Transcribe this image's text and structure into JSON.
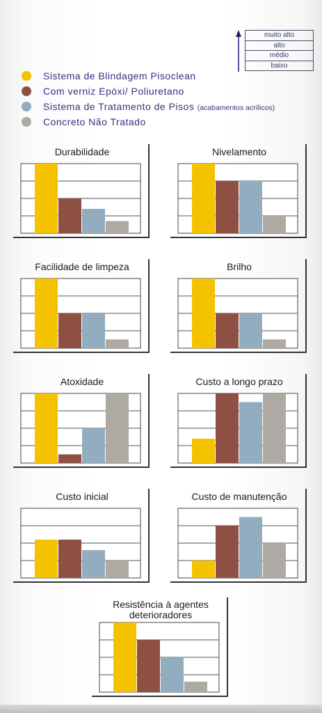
{
  "scale": {
    "levels": [
      "muito alto",
      "alto",
      "médio",
      "baixo"
    ],
    "arrow_color": "#1f1f6e"
  },
  "legend": [
    {
      "label": "Sistema de Blindagem Pisoclean",
      "note": "",
      "color": "#f5c200"
    },
    {
      "label": "Com verniz Epóxi/ Poliuretano",
      "note": "",
      "color": "#8f5044"
    },
    {
      "label": "Sistema de Tratamento de Pisos",
      "note": "(acabamentos acrílicos)",
      "color": "#93adc0"
    },
    {
      "label": "Concreto Não Tratado",
      "note": "",
      "color": "#aeaaa3"
    }
  ],
  "chart_data": [
    {
      "type": "bar",
      "title": "Durabilidade",
      "ylim": [
        0,
        4
      ],
      "values": [
        4.0,
        2.0,
        1.4,
        0.7
      ]
    },
    {
      "type": "bar",
      "title": "Nivelamento",
      "ylim": [
        0,
        4
      ],
      "values": [
        4.0,
        3.0,
        3.0,
        1.0
      ]
    },
    {
      "type": "bar",
      "title": "Facilidade de limpeza",
      "ylim": [
        0,
        4
      ],
      "values": [
        4.0,
        2.0,
        2.0,
        0.5
      ]
    },
    {
      "type": "bar",
      "title": "Brilho",
      "ylim": [
        0,
        4
      ],
      "values": [
        4.0,
        2.0,
        2.0,
        0.5
      ]
    },
    {
      "type": "bar",
      "title": "Atoxidade",
      "ylim": [
        0,
        4
      ],
      "values": [
        4.0,
        0.5,
        2.0,
        4.0
      ]
    },
    {
      "type": "bar",
      "title": "Custo a longo prazo",
      "ylim": [
        0,
        4
      ],
      "values": [
        1.4,
        4.0,
        3.5,
        4.0
      ]
    },
    {
      "type": "bar",
      "title": "Custo inicial",
      "ylim": [
        0,
        4
      ],
      "values": [
        2.2,
        2.2,
        1.6,
        1.0
      ]
    },
    {
      "type": "bar",
      "title": "Custo de manutenção",
      "ylim": [
        0,
        4
      ],
      "values": [
        1.0,
        3.0,
        3.5,
        2.0
      ]
    },
    {
      "type": "bar",
      "title": "Resistência à agentes deterioradores",
      "ylim": [
        0,
        4
      ],
      "values": [
        4.0,
        3.0,
        2.0,
        0.6
      ]
    }
  ]
}
